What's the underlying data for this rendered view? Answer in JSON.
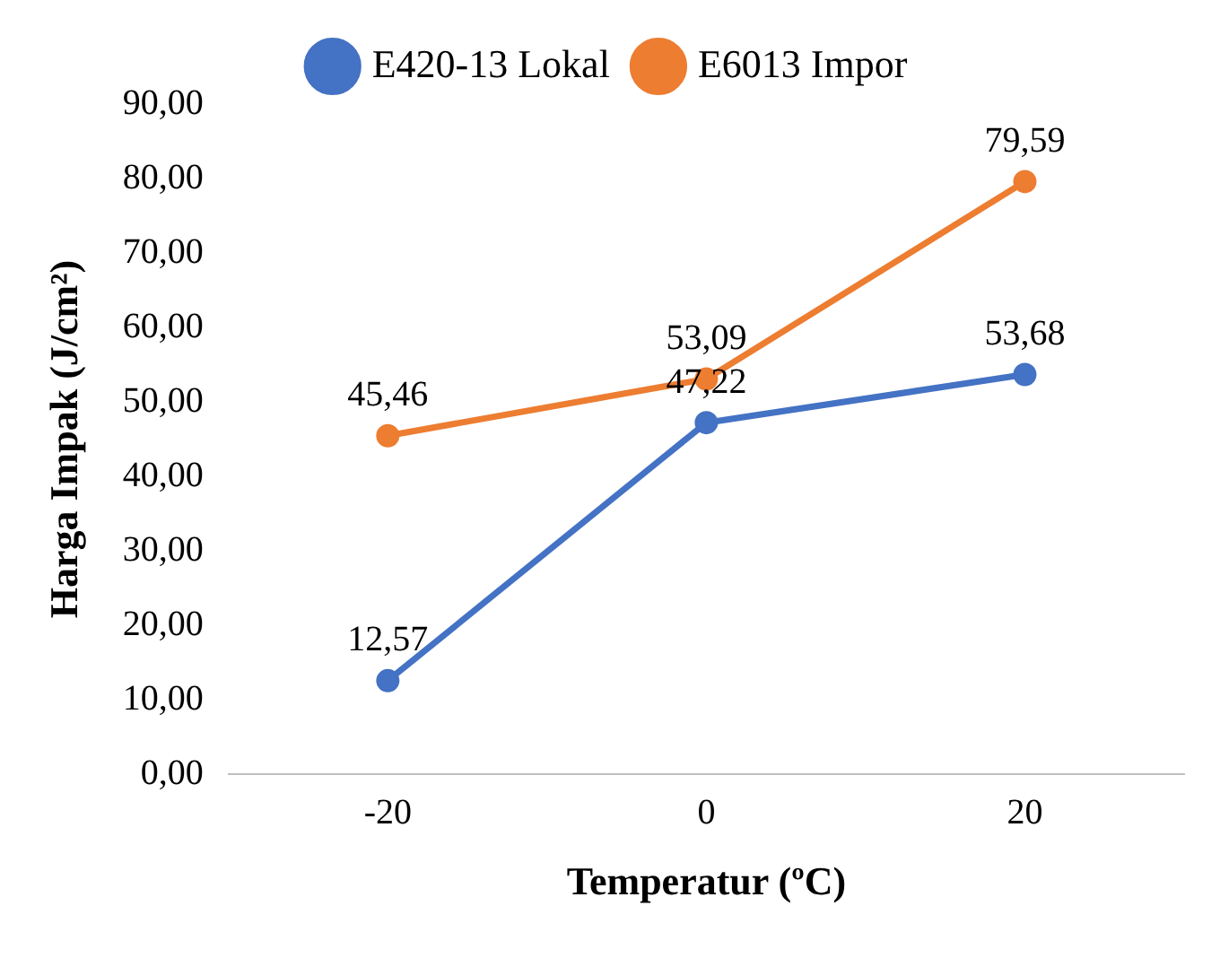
{
  "chart_data": {
    "type": "line",
    "xlabel": "Temperatur (ºC)",
    "ylabel": "Harga Impak (J/cm²)",
    "categories": [
      "-20",
      "0",
      "20"
    ],
    "series": [
      {
        "name": "E420-13 Lokal",
        "color": "#4472c4",
        "values": [
          12.57,
          47.22,
          53.68
        ],
        "value_labels": [
          "12,57",
          "47,22",
          "53,68"
        ]
      },
      {
        "name": "E6013 Impor",
        "color": "#ed7d31",
        "values": [
          45.46,
          53.09,
          79.59
        ],
        "value_labels": [
          "45,46",
          "53,09",
          "79,59"
        ]
      }
    ],
    "ylim": [
      0,
      90
    ],
    "yticks": [
      {
        "value": 0,
        "label": "0,00"
      },
      {
        "value": 10,
        "label": "10,00"
      },
      {
        "value": 20,
        "label": "20,00"
      },
      {
        "value": 30,
        "label": "30,00"
      },
      {
        "value": 40,
        "label": "40,00"
      },
      {
        "value": 50,
        "label": "50,00"
      },
      {
        "value": 60,
        "label": "60,00"
      },
      {
        "value": 70,
        "label": "70,00"
      },
      {
        "value": 80,
        "label": "80,00"
      },
      {
        "value": 90,
        "label": "90,00"
      }
    ],
    "grid": false,
    "legend": "top",
    "marker": "circle",
    "line_style": "solid"
  }
}
